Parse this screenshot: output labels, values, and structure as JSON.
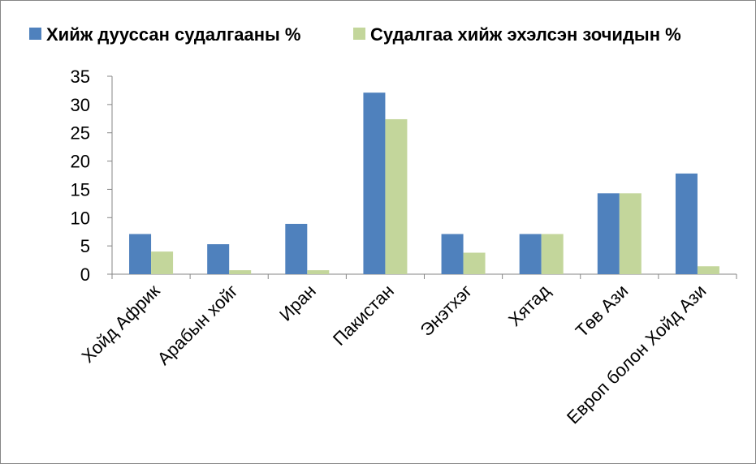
{
  "chart_data": {
    "type": "bar",
    "categories": [
      "Хойд Африк",
      "Арабын хойг",
      "Иран",
      "Пакистан",
      "Энэтхэг",
      "Хятад",
      "Төв Ази",
      "Европ болон Хойд Ази"
    ],
    "series": [
      {
        "name": "Хийж дууссан судалгааны %",
        "color": "#4F81BD",
        "values": [
          7.1,
          5.3,
          8.9,
          32.1,
          7.1,
          7.1,
          14.3,
          17.8
        ]
      },
      {
        "name": "Судалгаа хийж эхэлсэн зочидын %",
        "color": "#C3D69B",
        "values": [
          4.0,
          0.7,
          0.7,
          27.4,
          3.8,
          7.1,
          14.3,
          1.4
        ]
      }
    ],
    "y_ticks": [
      "0",
      "5",
      "10",
      "15",
      "20",
      "25",
      "30",
      "35"
    ],
    "ylim": [
      0,
      35
    ],
    "grid": false,
    "legend_position": "top"
  }
}
